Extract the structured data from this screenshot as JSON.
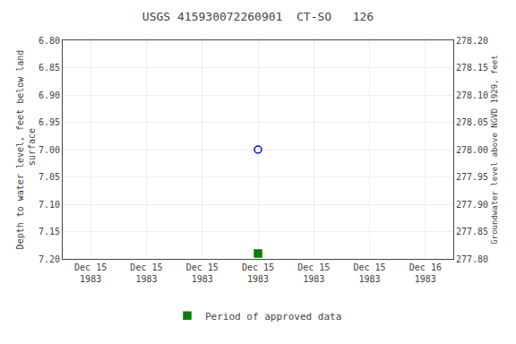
{
  "chart_data": {
    "type": "scatter",
    "title": "USGS 415930072260901  CT-SO   126",
    "y_label": "Depth to water level, feet below land\n surface",
    "y2_label": "Groundwater level above NGVD 1929, feet",
    "categories": [
      "Dec 15\n1983",
      "Dec 15\n1983",
      "Dec 15\n1983",
      "Dec 15\n1983",
      "Dec 15\n1983",
      "Dec 15\n1983",
      "Dec 16\n1983"
    ],
    "series": [
      {
        "color": "blue",
        "marker": "circle-open",
        "values": [
          null,
          null,
          null,
          7.0,
          null,
          null,
          null
        ]
      },
      {
        "name": "Period of approved data",
        "color": "#008000",
        "marker": "square",
        "values": [
          null,
          null,
          null,
          7.19,
          null,
          null,
          null
        ]
      }
    ],
    "ylim": [
      7.2,
      6.8
    ],
    "yticks": [
      {
        "value": 6.8,
        "label": "6.80"
      },
      {
        "value": 6.85,
        "label": "6.85"
      },
      {
        "value": 6.9,
        "label": "6.90"
      },
      {
        "value": 6.95,
        "label": "6.95"
      },
      {
        "value": 7.0,
        "label": "7.00"
      },
      {
        "value": 7.05,
        "label": "7.05"
      },
      {
        "value": 7.1,
        "label": "7.10"
      },
      {
        "value": 7.15,
        "label": "7.15"
      },
      {
        "value": 7.2,
        "label": "7.20"
      }
    ],
    "y2lim": [
      277.8,
      278.2
    ],
    "y2ticks": [
      {
        "value": 278.2,
        "label": "278.20"
      },
      {
        "value": 278.15,
        "label": "278.15"
      },
      {
        "value": 278.1,
        "label": "278.10"
      },
      {
        "value": 278.05,
        "label": "278.05"
      },
      {
        "value": 278.0,
        "label": "278.00"
      },
      {
        "value": 277.95,
        "label": "277.95"
      },
      {
        "value": 277.9,
        "label": "277.90"
      },
      {
        "value": 277.85,
        "label": "277.85"
      },
      {
        "value": 277.8,
        "label": "277.80"
      }
    ],
    "grid": true,
    "legend": "bottom"
  }
}
